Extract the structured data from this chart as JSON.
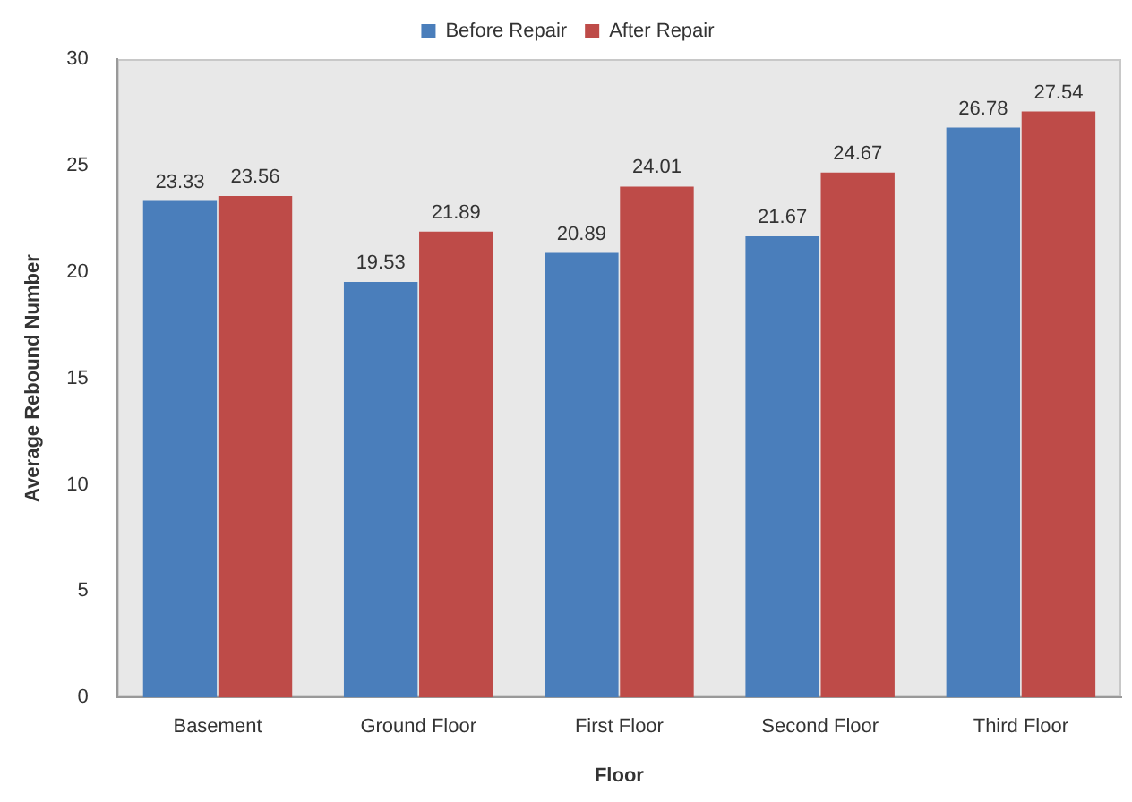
{
  "chart_data": {
    "type": "bar",
    "xlabel": "Floor",
    "ylabel": "Average Rebound Number",
    "categories": [
      "Basement",
      "Ground Floor",
      "First Floor",
      "Second Floor",
      "Third Floor"
    ],
    "series": [
      {
        "name": "Before Repair",
        "color": "#4a7ebb",
        "values": [
          23.33,
          19.53,
          20.89,
          21.67,
          26.78
        ]
      },
      {
        "name": "After Repair",
        "color": "#be4b48",
        "values": [
          23.56,
          21.89,
          24.01,
          24.67,
          27.54
        ]
      }
    ],
    "ylim": [
      0,
      30
    ],
    "yticks": [
      0,
      5,
      10,
      15,
      20,
      25,
      30
    ],
    "grid": false,
    "legend": "top",
    "data_labels": true
  }
}
